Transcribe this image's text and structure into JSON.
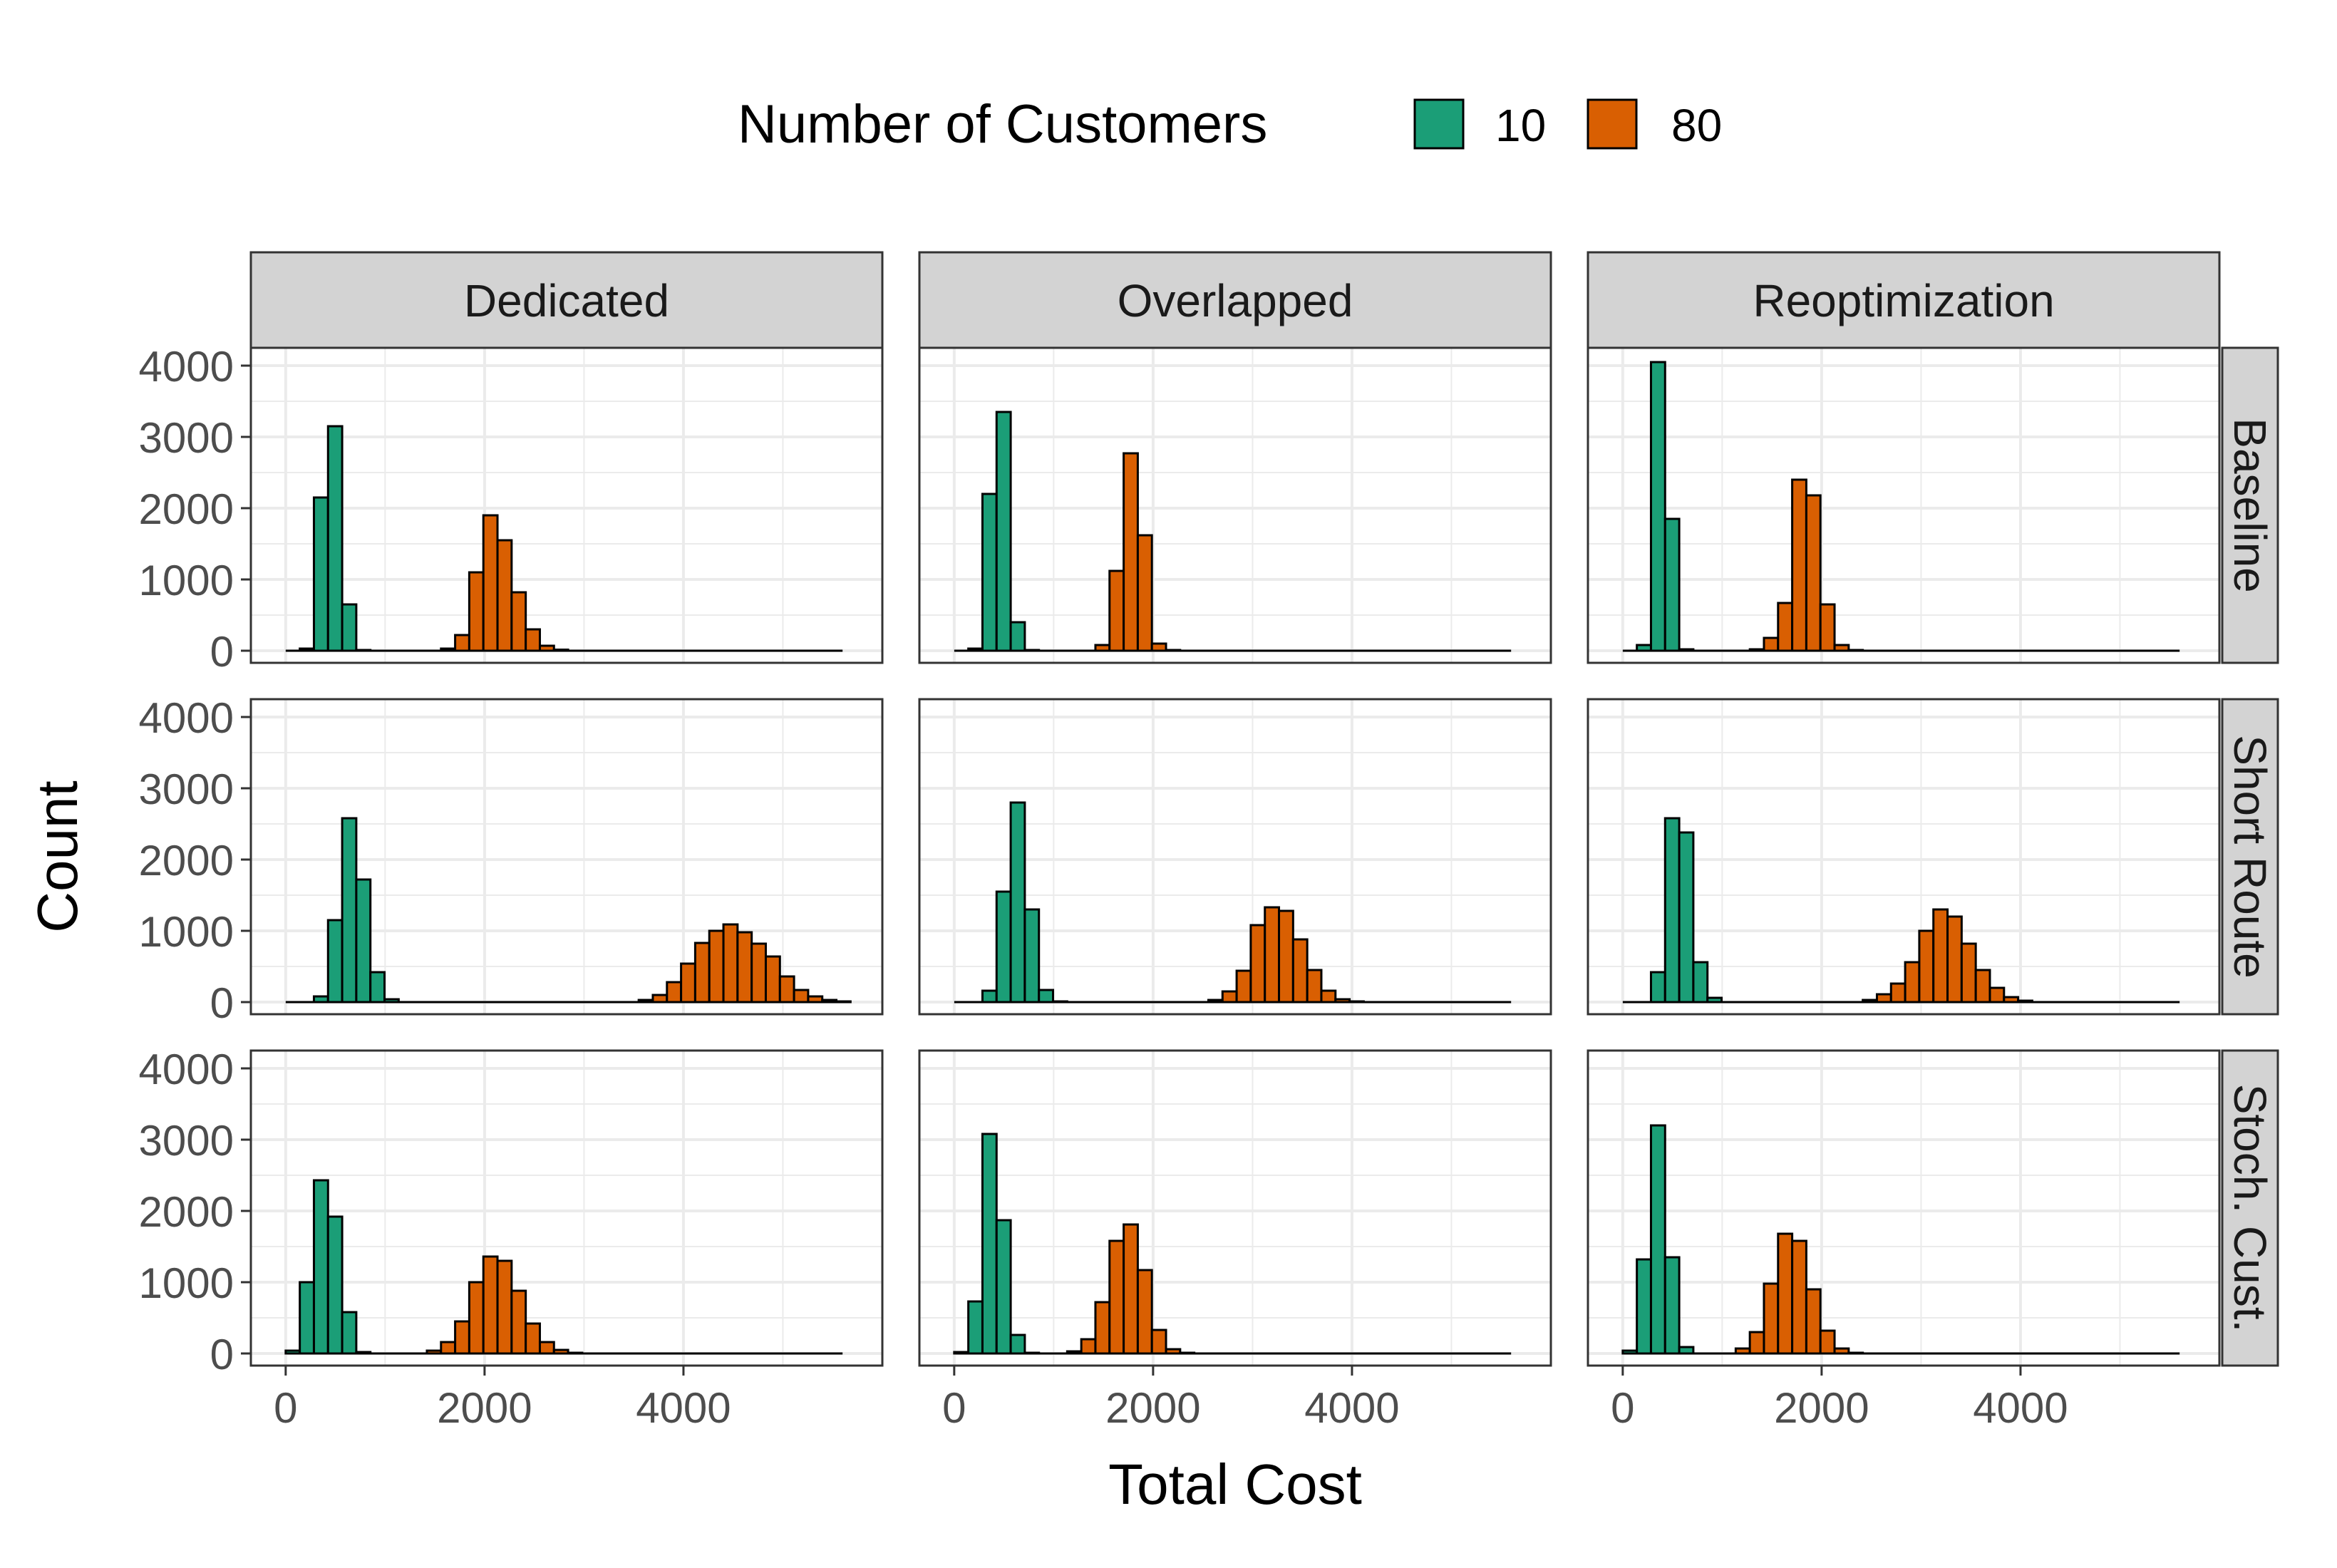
{
  "chart_data": {
    "type": "histogram",
    "xlabel": "Total Cost",
    "ylabel": "Count",
    "legend": {
      "title": "Number of Customers",
      "position": "top",
      "entries": [
        {
          "label": "10",
          "color": "#1b9e77"
        },
        {
          "label": "80",
          "color": "#d95f02"
        }
      ]
    },
    "x_range": [
      0,
      5600
    ],
    "y_range": [
      0,
      4000
    ],
    "x_ticks": [
      "0",
      "2000",
      "4000"
    ],
    "y_ticks": [
      "0",
      "1000",
      "2000",
      "3000",
      "4000"
    ],
    "x_tick_values": [
      0,
      2000,
      4000
    ],
    "y_tick_values": [
      0,
      1000,
      2000,
      3000,
      4000
    ],
    "bin_width": 142,
    "grid": true,
    "columns": [
      "Dedicated",
      "Overlapped",
      "Reoptimization"
    ],
    "rows": [
      "Baseline",
      "Short Route",
      "Stoch. Cust."
    ],
    "panels": [
      {
        "row": 0,
        "col": 0,
        "series": [
          {
            "name": "10",
            "bins": [
              [
                142,
                30
              ],
              [
                284,
                2150
              ],
              [
                426,
                3150
              ],
              [
                568,
                650
              ],
              [
                710,
                10
              ]
            ]
          },
          {
            "name": "80",
            "bins": [
              [
                1562,
                30
              ],
              [
                1704,
                220
              ],
              [
                1846,
                1100
              ],
              [
                1988,
                1900
              ],
              [
                2130,
                1550
              ],
              [
                2272,
                820
              ],
              [
                2414,
                300
              ],
              [
                2556,
                70
              ],
              [
                2698,
                15
              ]
            ]
          }
        ]
      },
      {
        "row": 0,
        "col": 1,
        "series": [
          {
            "name": "10",
            "bins": [
              [
                142,
                30
              ],
              [
                284,
                2200
              ],
              [
                426,
                3350
              ],
              [
                568,
                400
              ],
              [
                710,
                10
              ]
            ]
          },
          {
            "name": "80",
            "bins": [
              [
                1420,
                80
              ],
              [
                1562,
                1120
              ],
              [
                1704,
                2770
              ],
              [
                1846,
                1620
              ],
              [
                1988,
                100
              ],
              [
                2130,
                10
              ]
            ]
          }
        ]
      },
      {
        "row": 0,
        "col": 2,
        "series": [
          {
            "name": "10",
            "bins": [
              [
                142,
                80
              ],
              [
                284,
                4050
              ],
              [
                426,
                1850
              ],
              [
                568,
                20
              ]
            ]
          },
          {
            "name": "80",
            "bins": [
              [
                1278,
                20
              ],
              [
                1420,
                180
              ],
              [
                1562,
                670
              ],
              [
                1704,
                2400
              ],
              [
                1846,
                2180
              ],
              [
                1988,
                650
              ],
              [
                2130,
                80
              ],
              [
                2272,
                10
              ]
            ]
          }
        ]
      },
      {
        "row": 1,
        "col": 0,
        "series": [
          {
            "name": "10",
            "bins": [
              [
                284,
                80
              ],
              [
                426,
                1150
              ],
              [
                568,
                2580
              ],
              [
                710,
                1720
              ],
              [
                852,
                420
              ],
              [
                994,
                40
              ]
            ]
          },
          {
            "name": "80",
            "bins": [
              [
                3550,
                30
              ],
              [
                3692,
                100
              ],
              [
                3834,
                280
              ],
              [
                3976,
                540
              ],
              [
                4118,
                830
              ],
              [
                4260,
                1000
              ],
              [
                4402,
                1090
              ],
              [
                4544,
                980
              ],
              [
                4686,
                820
              ],
              [
                4828,
                640
              ],
              [
                4970,
                360
              ],
              [
                5112,
                170
              ],
              [
                5254,
                80
              ],
              [
                5396,
                30
              ],
              [
                5538,
                10
              ]
            ]
          }
        ]
      },
      {
        "row": 1,
        "col": 1,
        "series": [
          {
            "name": "10",
            "bins": [
              [
                284,
                160
              ],
              [
                426,
                1550
              ],
              [
                568,
                2800
              ],
              [
                710,
                1300
              ],
              [
                852,
                170
              ],
              [
                994,
                10
              ]
            ]
          },
          {
            "name": "80",
            "bins": [
              [
                2556,
                30
              ],
              [
                2698,
                150
              ],
              [
                2840,
                440
              ],
              [
                2982,
                1080
              ],
              [
                3124,
                1330
              ],
              [
                3266,
                1280
              ],
              [
                3408,
                880
              ],
              [
                3550,
                450
              ],
              [
                3692,
                160
              ],
              [
                3834,
                40
              ],
              [
                3976,
                10
              ]
            ]
          }
        ]
      },
      {
        "row": 1,
        "col": 2,
        "series": [
          {
            "name": "10",
            "bins": [
              [
                284,
                420
              ],
              [
                426,
                2580
              ],
              [
                568,
                2380
              ],
              [
                710,
                560
              ],
              [
                852,
                60
              ]
            ]
          },
          {
            "name": "80",
            "bins": [
              [
                2414,
                30
              ],
              [
                2556,
                110
              ],
              [
                2698,
                260
              ],
              [
                2840,
                560
              ],
              [
                2982,
                1000
              ],
              [
                3124,
                1300
              ],
              [
                3266,
                1200
              ],
              [
                3408,
                820
              ],
              [
                3550,
                450
              ],
              [
                3692,
                200
              ],
              [
                3834,
                70
              ],
              [
                3976,
                20
              ]
            ]
          }
        ]
      },
      {
        "row": 2,
        "col": 0,
        "series": [
          {
            "name": "10",
            "bins": [
              [
                0,
                40
              ],
              [
                142,
                1000
              ],
              [
                284,
                2430
              ],
              [
                426,
                1920
              ],
              [
                568,
                580
              ],
              [
                710,
                20
              ]
            ]
          },
          {
            "name": "80",
            "bins": [
              [
                1420,
                40
              ],
              [
                1562,
                160
              ],
              [
                1704,
                450
              ],
              [
                1846,
                1000
              ],
              [
                1988,
                1360
              ],
              [
                2130,
                1300
              ],
              [
                2272,
                880
              ],
              [
                2414,
                420
              ],
              [
                2556,
                160
              ],
              [
                2698,
                50
              ],
              [
                2840,
                10
              ]
            ]
          }
        ]
      },
      {
        "row": 2,
        "col": 1,
        "series": [
          {
            "name": "10",
            "bins": [
              [
                0,
                20
              ],
              [
                142,
                730
              ],
              [
                284,
                3080
              ],
              [
                426,
                1870
              ],
              [
                568,
                260
              ],
              [
                710,
                10
              ]
            ]
          },
          {
            "name": "80",
            "bins": [
              [
                1136,
                30
              ],
              [
                1278,
                200
              ],
              [
                1420,
                720
              ],
              [
                1562,
                1580
              ],
              [
                1704,
                1810
              ],
              [
                1846,
                1170
              ],
              [
                1988,
                330
              ],
              [
                2130,
                60
              ],
              [
                2272,
                10
              ]
            ]
          }
        ]
      },
      {
        "row": 2,
        "col": 2,
        "series": [
          {
            "name": "10",
            "bins": [
              [
                0,
                40
              ],
              [
                142,
                1320
              ],
              [
                284,
                3200
              ],
              [
                426,
                1350
              ],
              [
                568,
                90
              ]
            ]
          },
          {
            "name": "80",
            "bins": [
              [
                1136,
                70
              ],
              [
                1278,
                300
              ],
              [
                1420,
                980
              ],
              [
                1562,
                1680
              ],
              [
                1704,
                1580
              ],
              [
                1846,
                900
              ],
              [
                1988,
                320
              ],
              [
                2130,
                70
              ],
              [
                2272,
                10
              ]
            ]
          }
        ]
      }
    ]
  }
}
